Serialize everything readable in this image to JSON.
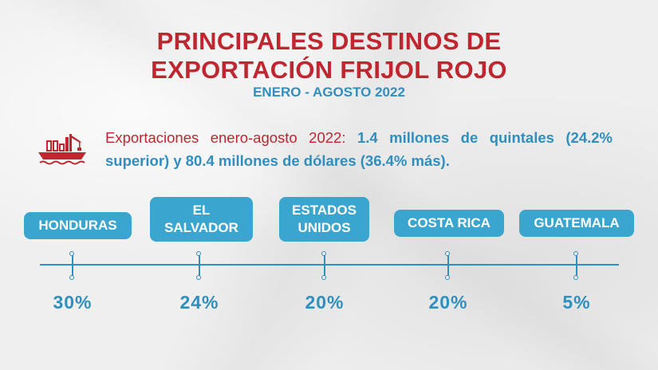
{
  "title": {
    "line1": "PRINCIPALES DESTINOS DE",
    "line2": "EXPORTACIÓN FRIJOL ROJO"
  },
  "subtitle": "ENERO - AGOSTO 2022",
  "summary": {
    "lead": "Exportaciones enero-agosto 2022: ",
    "quintales": "1.4 millones de quintales",
    "rest": "(24.2% superior) y 80.4 millones de dólares (36.4% más)."
  },
  "ship_icon": "cargo-ship-icon",
  "colors": {
    "title": "#c0262f",
    "accent": "#2f8fc0",
    "label_bg": "#3aa6cf"
  },
  "destinations": [
    {
      "name": "HONDURAS",
      "share": "30%"
    },
    {
      "name": "EL SALVADOR",
      "share": "24%"
    },
    {
      "name": "ESTADOS UNIDOS",
      "share": "20%"
    },
    {
      "name": "COSTA RICA",
      "share": "20%"
    },
    {
      "name": "GUATEMALA",
      "share": "5%"
    }
  ]
}
